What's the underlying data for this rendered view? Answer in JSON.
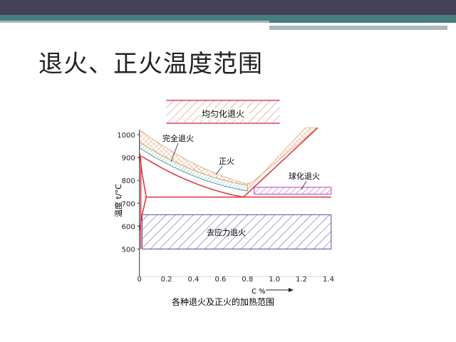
{
  "slide": {
    "title": "退火、正火温度范围"
  },
  "colors": {
    "header_dark": "#43405a",
    "header_teal": "#467e80",
    "line_red": "#e0303a",
    "normalizing": "#e8a070",
    "full_anneal": "#60c090",
    "spheroidize": "#b040c0",
    "stress_relief": "#5050a0",
    "homogenize": "#e07080"
  },
  "diagram": {
    "caption": "各种退火及正火的加热范围",
    "xlabel": "C %",
    "ylabel": "温度 t/°C",
    "x_ticks": [
      "0",
      "0.2",
      "0.4",
      "0.6",
      "0.8",
      "1.0",
      "1.2",
      "1.4"
    ],
    "y_ticks": [
      "500",
      "600",
      "700",
      "800",
      "900",
      "1000"
    ],
    "xlim": [
      0,
      1.4
    ],
    "ylim": [
      500,
      1000
    ],
    "regions": {
      "homogenize": {
        "label": "均匀化退火",
        "c_range": [
          0.2,
          1.04
        ],
        "t_range": [
          1050,
          1150
        ]
      },
      "full_anneal": {
        "label": "完全退火"
      },
      "normalize": {
        "label": "正火"
      },
      "spheroidize": {
        "label": "球化退火",
        "c_range": [
          0.85,
          1.45
        ],
        "t_range": [
          740,
          770
        ]
      },
      "stress_relief": {
        "label": "去应力退火",
        "c_range": [
          0.02,
          1.45
        ],
        "t_range": [
          500,
          650
        ]
      }
    }
  }
}
